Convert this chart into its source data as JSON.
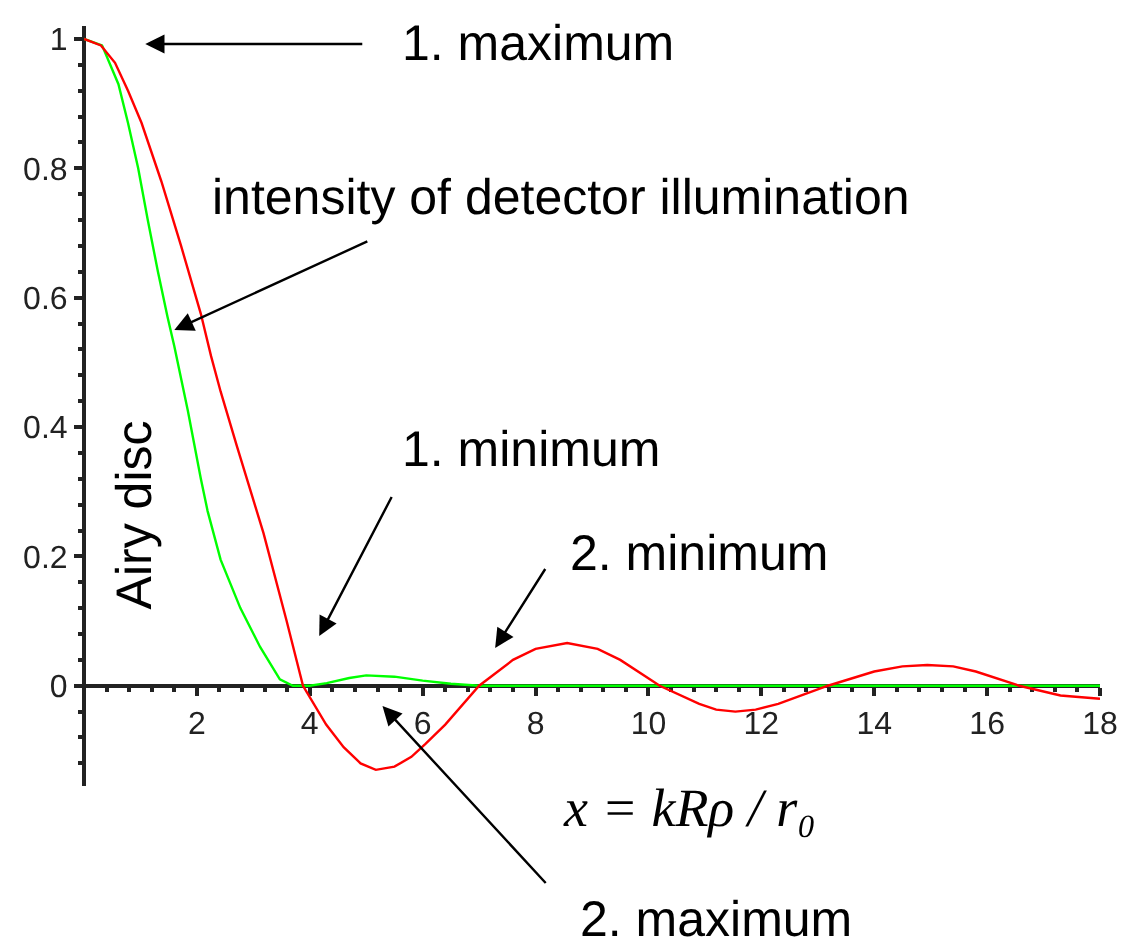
{
  "chart_data": {
    "type": "line",
    "xlabel": "x = kRρ / r₀",
    "series": [
      {
        "color": "#00ff00",
        "x": [
          0,
          0.32,
          0.61,
          0.78,
          0.96,
          1.13,
          1.31,
          1.48,
          1.6,
          1.72,
          1.84,
          1.95,
          2.07,
          2.19,
          2.42,
          2.77,
          3.12,
          3.47,
          3.7,
          4.0,
          4.3,
          4.7,
          5.0,
          5.5,
          6.0,
          6.5,
          7.0,
          8.5,
          10.2,
          12,
          14,
          16,
          18
        ],
        "values": [
          1,
          0.99,
          0.93,
          0.87,
          0.8,
          0.72,
          0.64,
          0.57,
          0.525,
          0.475,
          0.425,
          0.375,
          0.32,
          0.27,
          0.195,
          0.12,
          0.06,
          0.01,
          0,
          0,
          0.004,
          0.012,
          0.016,
          0.014,
          0.008,
          0.003,
          0,
          0,
          0,
          0,
          0,
          0,
          0
        ]
      },
      {
        "color": "#ff0000",
        "x": [
          0,
          0.3,
          0.55,
          0.78,
          1.02,
          1.37,
          1.72,
          2.07,
          2.25,
          2.42,
          2.71,
          3.18,
          3.59,
          3.88,
          4.29,
          4.6,
          4.9,
          5.17,
          5.5,
          5.8,
          6.05,
          6.4,
          7.0,
          7.6,
          8.0,
          8.56,
          9.1,
          9.5,
          10.2,
          10.9,
          11.2,
          11.54,
          11.9,
          12.3,
          13.18,
          14.0,
          14.5,
          14.94,
          15.4,
          15.8,
          16.57,
          17.3,
          18
        ],
        "values": [
          1,
          0.99,
          0.963,
          0.92,
          0.87,
          0.78,
          0.68,
          0.575,
          0.51,
          0.455,
          0.37,
          0.236,
          0.1,
          0,
          -0.06,
          -0.095,
          -0.12,
          -0.13,
          -0.125,
          -0.11,
          -0.09,
          -0.06,
          0,
          0.04,
          0.057,
          0.066,
          0.057,
          0.04,
          0,
          -0.028,
          -0.037,
          -0.04,
          -0.037,
          -0.028,
          0,
          0.022,
          0.03,
          0.032,
          0.03,
          0.022,
          0,
          -0.015,
          -0.02
        ]
      }
    ],
    "xlim": [
      0,
      18
    ],
    "ylim": [
      -0.155,
      1.02
    ],
    "xticks": [
      2,
      4,
      6,
      8,
      10,
      12,
      14,
      16,
      18
    ],
    "yticks": [
      0,
      0.2,
      0.4,
      0.6,
      0.8,
      1
    ],
    "annotations": [
      "1. maximum",
      {
        "text": "intensity of detector illumination",
        "x": 1.6,
        "y": 0.55
      },
      "1. minimum",
      "2. minimum",
      "2. maximum",
      "Airy disc"
    ]
  }
}
